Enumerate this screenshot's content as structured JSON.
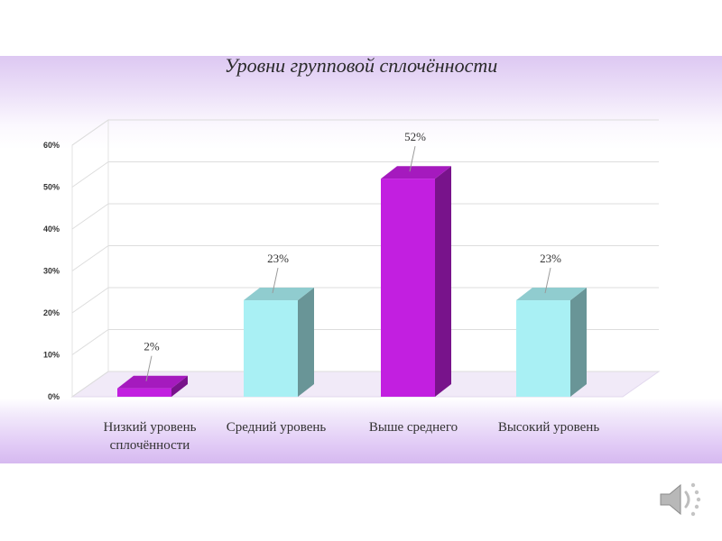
{
  "chart_data": {
    "type": "bar",
    "title": "Уровни групповой сплочённости",
    "categories": [
      [
        "Низкий уровень",
        "сплочённости"
      ],
      [
        "Средний уровень"
      ],
      [
        "Выше среднего"
      ],
      [
        "Высокий уровень"
      ]
    ],
    "values": [
      2,
      23,
      52,
      23
    ],
    "value_labels": [
      "2%",
      "23%",
      "52%",
      "23%"
    ],
    "bar_colors": [
      "#c21fe0",
      "#a9f0f4",
      "#c21fe0",
      "#a9f0f4"
    ],
    "y_ticks": [
      "0%",
      "10%",
      "20%",
      "30%",
      "40%",
      "50%",
      "60%"
    ],
    "ylim": [
      0,
      60
    ],
    "grid": true,
    "style": "3d-column"
  },
  "colors": {
    "purple": "#c21fe0",
    "cyan": "#a9f0f4",
    "band": "#d6b9f0"
  },
  "icons": {
    "speaker": "speaker-icon"
  }
}
